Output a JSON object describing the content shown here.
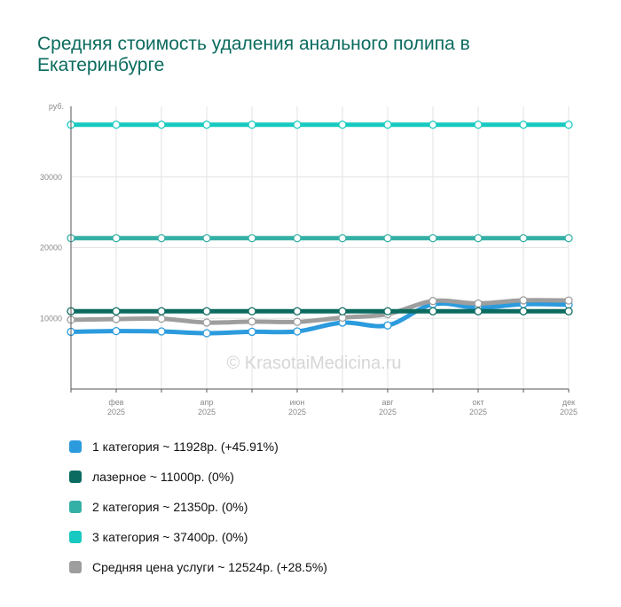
{
  "title": "Средняя стоимость удаления анального полипа в Екатеринбурге",
  "watermark": "© KrasotaiMedicina.ru",
  "chart_data": {
    "type": "line",
    "y_unit": "руб.",
    "ylim": [
      0,
      40000
    ],
    "y_ticks": [
      10000,
      20000,
      30000
    ],
    "grid": true,
    "x": [
      "2025-01",
      "2025-02",
      "2025-03",
      "2025-04",
      "2025-05",
      "2025-06",
      "2025-07",
      "2025-08",
      "2025-09",
      "2025-10",
      "2025-11",
      "2025-12"
    ],
    "x_tick_labels": [
      {
        "index": 1,
        "month": "фев",
        "year": "2025"
      },
      {
        "index": 3,
        "month": "апр",
        "year": "2025"
      },
      {
        "index": 5,
        "month": "июн",
        "year": "2025"
      },
      {
        "index": 7,
        "month": "авг",
        "year": "2025"
      },
      {
        "index": 9,
        "month": "окт",
        "year": "2025"
      },
      {
        "index": 11,
        "month": "дек",
        "year": "2025"
      }
    ],
    "series": [
      {
        "key": "cat1",
        "color": "#2b9bdd",
        "values": [
          8100,
          8200,
          8150,
          7900,
          8100,
          8150,
          9400,
          9000,
          12000,
          11500,
          12000,
          11928
        ]
      },
      {
        "key": "laser",
        "color": "#0c6b60",
        "values": [
          11000,
          11000,
          11000,
          11000,
          11000,
          11000,
          11000,
          11000,
          11000,
          11000,
          11000,
          11000
        ]
      },
      {
        "key": "cat2",
        "color": "#35b0a6",
        "values": [
          21350,
          21350,
          21350,
          21350,
          21350,
          21350,
          21350,
          21350,
          21350,
          21350,
          21350,
          21350
        ]
      },
      {
        "key": "cat3",
        "color": "#17c9c0",
        "values": [
          37400,
          37400,
          37400,
          37400,
          37400,
          37400,
          37400,
          37400,
          37400,
          37400,
          37400,
          37400
        ]
      },
      {
        "key": "avg",
        "color": "#9e9e9e",
        "values": [
          9800,
          9900,
          9950,
          9400,
          9550,
          9500,
          10100,
          10600,
          12450,
          12100,
          12550,
          12524
        ]
      }
    ]
  },
  "legend": [
    {
      "label": "1 категория ~ 11928р. (+45.91%)",
      "color": "#2b9bdd"
    },
    {
      "label": "лазерное ~ 11000р. (0%)",
      "color": "#0c6b60"
    },
    {
      "label": "2 категория ~ 21350р. (0%)",
      "color": "#35b0a6"
    },
    {
      "label": "3 категория ~ 37400р. (0%)",
      "color": "#17c9c0"
    },
    {
      "label": "Средняя цена услуги ~ 12524р. (+28.5%)",
      "color": "#9e9e9e"
    }
  ]
}
